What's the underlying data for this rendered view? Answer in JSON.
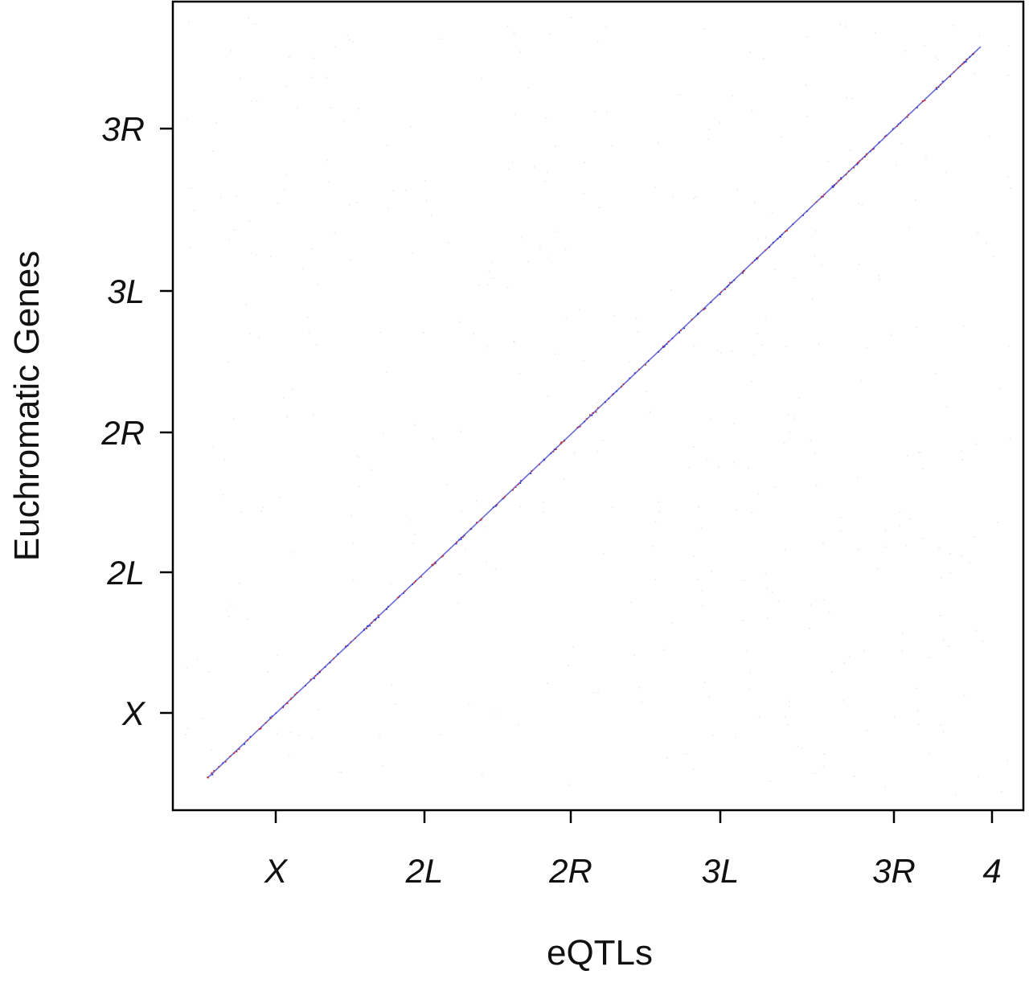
{
  "chart_data": {
    "type": "scatter",
    "title": "",
    "xlabel": "eQTLs",
    "ylabel": "Euchromatic Genes",
    "x_ticks": [
      "X",
      "2L",
      "2R",
      "3L",
      "3R",
      "4"
    ],
    "y_ticks": [
      "X",
      "2L",
      "2R",
      "3L",
      "3R"
    ],
    "grid": false,
    "legend": "none",
    "colors": {
      "trans": "#d9d9d9",
      "cis_a": "#c0303a",
      "cis_b": "#3a3ac8",
      "axis": "#000000"
    },
    "series": [
      {
        "points_description": "cis-eQTL diagonal",
        "x": [
          0.0,
          1.0
        ],
        "y": [
          0.0,
          1.0
        ]
      }
    ]
  }
}
